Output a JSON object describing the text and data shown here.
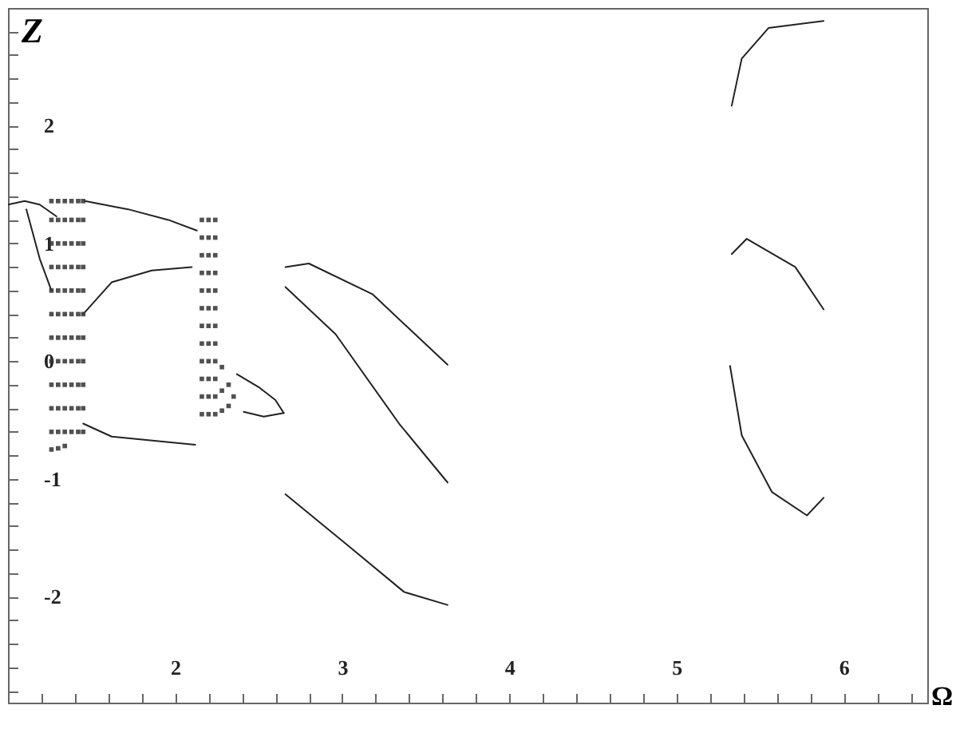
{
  "chart_data": {
    "type": "line",
    "xlabel": "Ω",
    "ylabel": "Z",
    "xlim": [
      1,
      6.5
    ],
    "ylim": [
      -2.9,
      3
    ],
    "xticks": [
      {
        "value": 1.2,
        "label": null
      },
      {
        "value": 1.4,
        "label": null
      },
      {
        "value": 1.6,
        "label": null
      },
      {
        "value": 1.8,
        "label": null
      },
      2,
      {
        "value": 2.2,
        "label": null
      },
      {
        "value": 2.4,
        "label": null
      },
      {
        "value": 2.6,
        "label": null
      },
      {
        "value": 2.8,
        "label": null
      },
      3,
      {
        "value": 3.2,
        "label": null
      },
      {
        "value": 3.4,
        "label": null
      },
      {
        "value": 3.6,
        "label": null
      },
      {
        "value": 3.8,
        "label": null
      },
      4,
      {
        "value": 4.2,
        "label": null
      },
      {
        "value": 4.4,
        "label": null
      },
      {
        "value": 4.6,
        "label": null
      },
      {
        "value": 4.8,
        "label": null
      },
      5,
      {
        "value": 5.2,
        "label": null
      },
      {
        "value": 5.4,
        "label": null
      },
      {
        "value": 5.6,
        "label": null
      },
      {
        "value": 5.8,
        "label": null
      },
      6,
      {
        "value": 6.2,
        "label": null
      },
      {
        "value": 6.4,
        "label": null
      }
    ],
    "yticks": [
      {
        "value": -2.8,
        "label": null
      },
      {
        "value": -2.6,
        "label": null
      },
      {
        "value": -2.4,
        "label": null
      },
      {
        "value": -2.2,
        "label": null
      },
      -2,
      {
        "value": -1.8,
        "label": null
      },
      {
        "value": -1.6,
        "label": null
      },
      {
        "value": -1.4,
        "label": null
      },
      {
        "value": -1.2,
        "label": null
      },
      -1,
      {
        "value": -0.8,
        "label": null
      },
      {
        "value": -0.6,
        "label": null
      },
      {
        "value": -0.4,
        "label": null
      },
      {
        "value": -0.2,
        "label": null
      },
      0,
      {
        "value": 0.2,
        "label": null
      },
      {
        "value": 0.4,
        "label": null
      },
      {
        "value": 0.6,
        "label": null
      },
      {
        "value": 0.8,
        "label": null
      },
      1,
      {
        "value": 1.2,
        "label": null
      },
      {
        "value": 1.4,
        "label": null
      },
      {
        "value": 1.6,
        "label": null
      },
      {
        "value": 1.8,
        "label": null
      },
      2,
      {
        "value": 2.2,
        "label": null
      },
      {
        "value": 2.4,
        "label": null
      },
      {
        "value": 2.6,
        "label": null
      },
      {
        "value": 2.8,
        "label": null
      }
    ],
    "marker": "none",
    "line_style": "solid",
    "series": [
      {
        "type": "line",
        "color": "#222222",
        "x": [
          1.0,
          1.1,
          1.19,
          1.29
        ],
        "values": [
          1.33,
          1.36,
          1.33,
          1.23
        ]
      },
      {
        "type": "line",
        "color": "#222222",
        "x": [
          1.11,
          1.19,
          1.26
        ],
        "values": [
          1.29,
          0.87,
          0.6
        ]
      },
      {
        "type": "line",
        "color": "#222222",
        "x": [
          1.46,
          1.72,
          1.96,
          2.13
        ],
        "values": [
          1.36,
          1.29,
          1.2,
          1.11
        ]
      },
      {
        "type": "line",
        "color": "#222222",
        "x": [
          1.45,
          1.62,
          1.86,
          2.1
        ],
        "values": [
          0.4,
          0.67,
          0.77,
          0.8
        ]
      },
      {
        "type": "line",
        "color": "#222222",
        "x": [
          1.45,
          1.62,
          2.12
        ],
        "values": [
          -0.53,
          -0.64,
          -0.71
        ]
      },
      {
        "type": "line",
        "color": "#222222",
        "x": [
          2.37,
          2.5,
          2.6,
          2.65
        ],
        "values": [
          -0.11,
          -0.22,
          -0.33,
          -0.44
        ]
      },
      {
        "type": "line",
        "color": "#222222",
        "x": [
          2.41,
          2.53,
          2.65
        ],
        "values": [
          -0.43,
          -0.47,
          -0.44
        ]
      },
      {
        "type": "line",
        "color": "#222222",
        "x": [
          2.66,
          2.8,
          3.18,
          3.63
        ],
        "values": [
          0.8,
          0.83,
          0.57,
          -0.03
        ]
      },
      {
        "type": "line",
        "color": "#222222",
        "x": [
          2.66,
          2.96,
          3.34,
          3.63
        ],
        "values": [
          0.63,
          0.23,
          -0.53,
          -1.03
        ]
      },
      {
        "type": "line",
        "color": "#222222",
        "x": [
          2.66,
          3.03,
          3.37,
          3.63
        ],
        "values": [
          -1.13,
          -1.56,
          -1.96,
          -2.07
        ]
      },
      {
        "type": "line",
        "color": "#222222",
        "x": [
          5.33,
          5.39,
          5.55,
          5.88
        ],
        "values": [
          2.17,
          2.57,
          2.83,
          2.89
        ]
      },
      {
        "type": "line",
        "color": "#222222",
        "x": [
          5.33,
          5.42,
          5.71,
          5.88
        ],
        "values": [
          0.91,
          1.04,
          0.8,
          0.44
        ]
      },
      {
        "type": "line",
        "color": "#222222",
        "x": [
          5.32,
          5.39,
          5.57,
          5.78,
          5.88
        ],
        "values": [
          -0.04,
          -0.63,
          -1.11,
          -1.31,
          -1.16
        ]
      },
      {
        "type": "scatter",
        "color": "#333333",
        "marker": "square",
        "x": [
          1.26,
          1.3,
          1.34,
          1.26,
          1.3,
          1.34,
          1.38,
          1.42,
          1.45,
          1.26,
          1.3,
          1.34,
          1.38,
          1.42,
          1.45,
          1.26,
          1.3,
          1.34,
          1.38,
          1.42,
          1.45,
          1.26,
          1.3,
          1.34,
          1.38,
          1.42,
          1.45,
          1.26,
          1.3,
          1.34,
          1.38,
          1.42,
          1.45,
          1.26,
          1.3,
          1.34,
          1.38,
          1.42,
          1.45,
          1.26,
          1.3,
          1.34,
          1.38,
          1.42,
          1.45,
          1.26,
          1.3,
          1.34,
          1.38,
          1.42,
          1.45,
          1.26,
          1.3,
          1.34,
          1.38,
          1.42,
          1.45,
          1.26,
          1.3,
          1.34,
          1.38,
          1.42,
          1.45,
          1.26,
          1.3,
          1.34,
          1.38,
          1.42,
          1.45
        ],
        "values": [
          -0.75,
          -0.74,
          -0.72,
          -0.6,
          -0.6,
          -0.6,
          -0.6,
          -0.6,
          -0.6,
          -0.4,
          -0.4,
          -0.4,
          -0.4,
          -0.4,
          -0.4,
          -0.2,
          -0.2,
          -0.2,
          -0.2,
          -0.2,
          -0.2,
          0,
          0,
          0,
          0,
          0,
          0,
          0.2,
          0.2,
          0.2,
          0.2,
          0.2,
          0.2,
          0.4,
          0.4,
          0.4,
          0.4,
          0.4,
          0.4,
          0.6,
          0.6,
          0.6,
          0.6,
          0.6,
          0.6,
          0.8,
          0.8,
          0.8,
          0.8,
          0.8,
          0.8,
          1,
          1,
          1,
          1,
          1,
          1,
          1.2,
          1.2,
          1.2,
          1.2,
          1.2,
          1.2,
          1.36,
          1.36,
          1.36,
          1.36,
          1.36,
          1.36
        ]
      },
      {
        "type": "scatter",
        "color": "#333333",
        "marker": "square",
        "x": [
          2.16,
          2.2,
          2.24,
          2.16,
          2.2,
          2.24,
          2.16,
          2.2,
          2.24,
          2.16,
          2.2,
          2.24,
          2.16,
          2.2,
          2.24,
          2.16,
          2.2,
          2.24,
          2.16,
          2.2,
          2.24,
          2.16,
          2.2,
          2.24,
          2.16,
          2.2,
          2.24,
          2.16,
          2.2,
          2.24,
          2.16,
          2.2,
          2.24,
          2.16,
          2.2,
          2.24,
          2.28,
          2.28,
          2.28,
          2.32,
          2.32,
          2.35
        ],
        "values": [
          -0.45,
          -0.45,
          -0.45,
          -0.3,
          -0.3,
          -0.3,
          -0.15,
          -0.15,
          -0.15,
          0,
          0,
          0,
          0.15,
          0.15,
          0.15,
          0.3,
          0.3,
          0.3,
          0.45,
          0.45,
          0.45,
          0.6,
          0.6,
          0.6,
          0.75,
          0.75,
          0.75,
          0.9,
          0.9,
          0.9,
          1.05,
          1.05,
          1.05,
          1.2,
          1.2,
          1.2,
          -0.05,
          -0.25,
          -0.42,
          -0.2,
          -0.38,
          -0.3
        ]
      }
    ]
  }
}
